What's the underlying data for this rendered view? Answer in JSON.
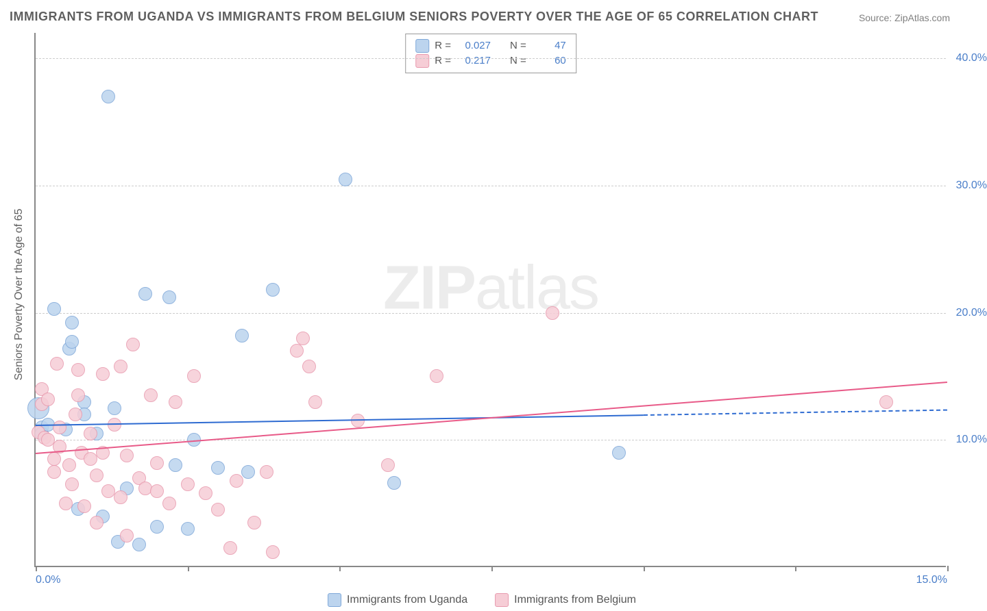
{
  "title": "IMMIGRANTS FROM UGANDA VS IMMIGRANTS FROM BELGIUM SENIORS POVERTY OVER THE AGE OF 65 CORRELATION CHART",
  "source": "Source: ZipAtlas.com",
  "watermark": "ZIPatlas",
  "ylabel": "Seniors Poverty Over the Age of 65",
  "chart": {
    "type": "scatter",
    "background_color": "#ffffff",
    "grid_color": "#cccccc",
    "axis_color": "#888888",
    "tick_label_color": "#4a7ec9",
    "label_color": "#5f5f5f",
    "label_fontsize": 16,
    "title_fontsize": 18,
    "xlim": [
      0,
      15
    ],
    "ylim": [
      0,
      42
    ],
    "xticks": [
      0,
      15
    ],
    "xtick_labels": [
      "0.0%",
      "15.0%"
    ],
    "yticks": [
      10,
      20,
      30,
      40
    ],
    "ytick_labels": [
      "10.0%",
      "20.0%",
      "30.0%",
      "40.0%"
    ],
    "marker_radius": 10,
    "marker_large_radius": 16,
    "series": [
      {
        "name": "Immigrants from Uganda",
        "color_fill": "#bcd4ee",
        "color_stroke": "#7fa8d9",
        "trend_color": "#2e6bd1",
        "R": "0.027",
        "N": "47",
        "trend": {
          "x1": 0,
          "y1": 11.2,
          "x2": 10,
          "y2": 12.0,
          "x2_ext": 15,
          "y2_ext": 12.4
        },
        "points": [
          {
            "x": 0.05,
            "y": 12.5,
            "r": 16
          },
          {
            "x": 0.1,
            "y": 11.0
          },
          {
            "x": 0.1,
            "y": 10.5
          },
          {
            "x": 0.2,
            "y": 11.2
          },
          {
            "x": 0.3,
            "y": 20.3
          },
          {
            "x": 0.5,
            "y": 10.8
          },
          {
            "x": 0.55,
            "y": 17.2
          },
          {
            "x": 0.6,
            "y": 17.7
          },
          {
            "x": 0.6,
            "y": 19.2
          },
          {
            "x": 0.7,
            "y": 4.6
          },
          {
            "x": 0.8,
            "y": 13.0
          },
          {
            "x": 0.8,
            "y": 12.0
          },
          {
            "x": 1.0,
            "y": 10.5
          },
          {
            "x": 1.1,
            "y": 4.0
          },
          {
            "x": 1.2,
            "y": 37.0
          },
          {
            "x": 1.3,
            "y": 12.5
          },
          {
            "x": 1.35,
            "y": 2.0
          },
          {
            "x": 1.5,
            "y": 6.2
          },
          {
            "x": 1.7,
            "y": 1.8
          },
          {
            "x": 1.8,
            "y": 21.5
          },
          {
            "x": 2.0,
            "y": 3.2
          },
          {
            "x": 2.2,
            "y": 21.2
          },
          {
            "x": 2.3,
            "y": 8.0
          },
          {
            "x": 2.5,
            "y": 3.0
          },
          {
            "x": 2.6,
            "y": 10.0
          },
          {
            "x": 3.0,
            "y": 7.8
          },
          {
            "x": 3.4,
            "y": 18.2
          },
          {
            "x": 3.5,
            "y": 7.5
          },
          {
            "x": 3.9,
            "y": 21.8
          },
          {
            "x": 5.1,
            "y": 30.5
          },
          {
            "x": 5.9,
            "y": 6.6
          },
          {
            "x": 9.6,
            "y": 9.0
          }
        ]
      },
      {
        "name": "Immigrants from Belgium",
        "color_fill": "#f6cdd6",
        "color_stroke": "#e89aae",
        "trend_color": "#e85a88",
        "R": "0.217",
        "N": "60",
        "trend": {
          "x1": 0,
          "y1": 9.0,
          "x2": 15,
          "y2": 14.6
        },
        "points": [
          {
            "x": 0.05,
            "y": 10.6
          },
          {
            "x": 0.1,
            "y": 12.8
          },
          {
            "x": 0.1,
            "y": 14.0
          },
          {
            "x": 0.15,
            "y": 10.2
          },
          {
            "x": 0.2,
            "y": 10.0
          },
          {
            "x": 0.2,
            "y": 13.2
          },
          {
            "x": 0.3,
            "y": 8.5
          },
          {
            "x": 0.3,
            "y": 7.5
          },
          {
            "x": 0.35,
            "y": 16.0
          },
          {
            "x": 0.4,
            "y": 9.5
          },
          {
            "x": 0.4,
            "y": 11.0
          },
          {
            "x": 0.5,
            "y": 5.0
          },
          {
            "x": 0.55,
            "y": 8.0
          },
          {
            "x": 0.6,
            "y": 6.5
          },
          {
            "x": 0.65,
            "y": 12.0
          },
          {
            "x": 0.7,
            "y": 13.5
          },
          {
            "x": 0.7,
            "y": 15.5
          },
          {
            "x": 0.75,
            "y": 9.0
          },
          {
            "x": 0.8,
            "y": 4.8
          },
          {
            "x": 0.9,
            "y": 8.5
          },
          {
            "x": 0.9,
            "y": 10.5
          },
          {
            "x": 1.0,
            "y": 7.2
          },
          {
            "x": 1.0,
            "y": 3.5
          },
          {
            "x": 1.1,
            "y": 9.0
          },
          {
            "x": 1.1,
            "y": 15.2
          },
          {
            "x": 1.2,
            "y": 6.0
          },
          {
            "x": 1.3,
            "y": 11.2
          },
          {
            "x": 1.4,
            "y": 5.5
          },
          {
            "x": 1.4,
            "y": 15.8
          },
          {
            "x": 1.5,
            "y": 8.8
          },
          {
            "x": 1.5,
            "y": 2.5
          },
          {
            "x": 1.6,
            "y": 17.5
          },
          {
            "x": 1.7,
            "y": 7.0
          },
          {
            "x": 1.8,
            "y": 6.2
          },
          {
            "x": 1.9,
            "y": 13.5
          },
          {
            "x": 2.0,
            "y": 6.0
          },
          {
            "x": 2.0,
            "y": 8.2
          },
          {
            "x": 2.2,
            "y": 5.0
          },
          {
            "x": 2.3,
            "y": 13.0
          },
          {
            "x": 2.5,
            "y": 6.5
          },
          {
            "x": 2.6,
            "y": 15.0
          },
          {
            "x": 2.8,
            "y": 5.8
          },
          {
            "x": 3.0,
            "y": 4.5
          },
          {
            "x": 3.2,
            "y": 1.5
          },
          {
            "x": 3.3,
            "y": 6.8
          },
          {
            "x": 3.6,
            "y": 3.5
          },
          {
            "x": 3.8,
            "y": 7.5
          },
          {
            "x": 3.9,
            "y": 1.2
          },
          {
            "x": 4.3,
            "y": 17.0
          },
          {
            "x": 4.4,
            "y": 18.0
          },
          {
            "x": 4.5,
            "y": 15.8
          },
          {
            "x": 4.6,
            "y": 13.0
          },
          {
            "x": 5.3,
            "y": 11.5
          },
          {
            "x": 5.8,
            "y": 8.0
          },
          {
            "x": 6.6,
            "y": 15.0
          },
          {
            "x": 8.5,
            "y": 20.0
          },
          {
            "x": 14.0,
            "y": 13.0
          }
        ]
      }
    ]
  },
  "legend_top_labels": {
    "R": "R =",
    "N": "N ="
  },
  "legend_bottom": [
    "Immigrants from Uganda",
    "Immigrants from Belgium"
  ]
}
